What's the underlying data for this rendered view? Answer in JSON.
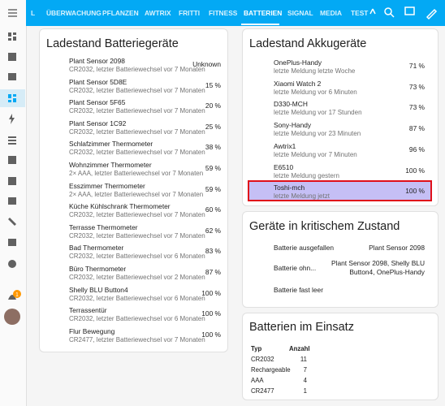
{
  "tabs": [
    "L",
    "ÜBERWACHUNG",
    "PFLANZEN",
    "AWTRIX",
    "FRITTI",
    "FITNESS",
    "BATTERIEN",
    "SIGNAL",
    "MEDIA",
    "TEST"
  ],
  "notification_badge": "1",
  "battery_devices": {
    "title": "Ladestand Batteriegeräte",
    "rows": [
      {
        "name": "Plant Sensor 2098",
        "detail": "CR2032, letzter Batteriewechsel vor 7 Monaten",
        "value": "Unknown"
      },
      {
        "name": "Plant Sensor 5D8E",
        "detail": "CR2032, letzter Batteriewechsel vor 7 Monaten",
        "value": "15 %"
      },
      {
        "name": "Plant Sensor 5F65",
        "detail": "CR2032, letzter Batteriewechsel vor 7 Monaten",
        "value": "20 %"
      },
      {
        "name": "Plant Sensor 1C92",
        "detail": "CR2032, letzter Batteriewechsel vor 7 Monaten",
        "value": "25 %"
      },
      {
        "name": "Schlafzimmer Thermometer",
        "detail": "CR2032, letzter Batteriewechsel vor 7 Monaten",
        "value": "38 %"
      },
      {
        "name": "Wohnzimmer Thermometer",
        "detail": "2× AAA, letzter Batteriewechsel vor 7 Monaten",
        "value": "59 %"
      },
      {
        "name": "Esszimmer Thermometer",
        "detail": "2× AAA, letzter Batteriewechsel vor 7 Monaten",
        "value": "59 %"
      },
      {
        "name": "Küche Kühlschrank Thermometer",
        "detail": "CR2032, letzter Batteriewechsel vor 7 Monaten",
        "value": "60 %"
      },
      {
        "name": "Terrasse Thermometer",
        "detail": "CR2032, letzter Batteriewechsel vor 7 Monaten",
        "value": "62 %"
      },
      {
        "name": "Bad Thermometer",
        "detail": "CR2032, letzter Batteriewechsel vor 6 Monaten",
        "value": "83 %"
      },
      {
        "name": "Büro Thermometer",
        "detail": "CR2032, letzter Batteriewechsel vor 2 Monaten",
        "value": "87 %"
      },
      {
        "name": "Shelly BLU Button4",
        "detail": "CR2032, letzter Batteriewechsel vor 6 Monaten",
        "value": "100 %"
      },
      {
        "name": "Terrassentür",
        "detail": "CR2032, letzter Batteriewechsel vor 6 Monaten",
        "value": "100 %"
      },
      {
        "name": "Flur Bewegung",
        "detail": "CR2477, letzter Batteriewechsel vor 7 Monaten",
        "value": "100 %"
      }
    ]
  },
  "rechargeable_devices": {
    "title": "Ladestand Akkugeräte",
    "rows": [
      {
        "name": "OnePlus-Handy",
        "detail": "letzte Meldung letzte Woche",
        "value": "71 %"
      },
      {
        "name": "Xiaomi Watch 2",
        "detail": "letzte Meldung vor 6 Minuten",
        "value": "73 %"
      },
      {
        "name": "D330-MCH",
        "detail": "letzte Meldung vor 17 Stunden",
        "value": "73 %"
      },
      {
        "name": "Sony-Handy",
        "detail": "letzte Meldung vor 23 Minuten",
        "value": "87 %"
      },
      {
        "name": "Awtrix1",
        "detail": "letzte Meldung vor 7 Minuten",
        "value": "96 %"
      },
      {
        "name": "E6510",
        "detail": "letzte Meldung gestern",
        "value": "100 %"
      },
      {
        "name": "Toshi-mch",
        "detail": "letzte Meldung jetzt",
        "value": "100 %"
      }
    ]
  },
  "critical": {
    "title": "Geräte in kritischem Zustand",
    "rows": [
      {
        "label": "Batterie ausgefallen",
        "devices": "Plant Sensor 2098"
      },
      {
        "label": "Batterie ohn...",
        "devices": "Plant Sensor 2098, Shelly BLU Button4, OnePlus-Handy"
      },
      {
        "label": "Batterie fast leer"
      }
    ]
  },
  "in_use": {
    "title": "Batterien im Einsatz",
    "columns": [
      "Typ",
      "Anzahl"
    ],
    "rows": [
      [
        "CR2032",
        "11"
      ],
      [
        "Rechargeable",
        "7"
      ],
      [
        "AAA",
        "4"
      ],
      [
        "CR2477",
        "1"
      ]
    ]
  }
}
